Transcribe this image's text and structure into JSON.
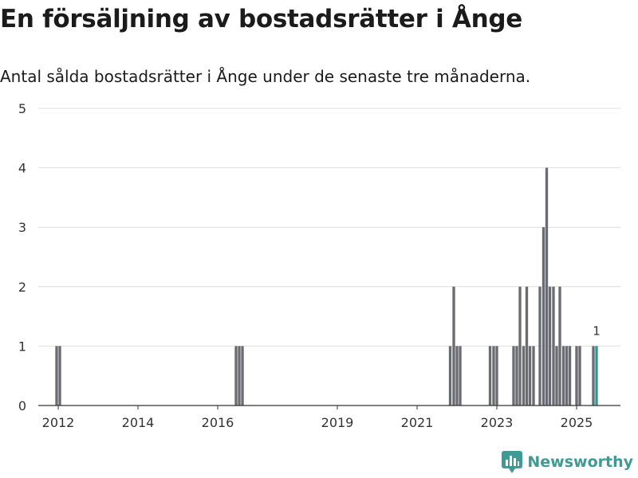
{
  "title": "En försäljning av bostadsrätter i Ånge",
  "subtitle": "Antal sålda bostadsrätter i Ånge under de senaste tre månaderna.",
  "brand": {
    "name": "Newsworthy",
    "icon": "newsworthy-logo-icon"
  },
  "colors": {
    "bar": "#6b6b73",
    "highlight": "#2a9d8f",
    "grid": "#dedede",
    "axis": "#333333",
    "brand": "#3f9a94"
  },
  "chart_data": {
    "type": "bar",
    "title": "En försäljning av bostadsrätter i Ånge",
    "xlabel": "",
    "ylabel": "",
    "ylim": [
      0,
      5
    ],
    "yticks": [
      0,
      1,
      2,
      3,
      4,
      5
    ],
    "xlim": [
      2011.5,
      2026.1
    ],
    "xticks": [
      2012,
      2014,
      2016,
      2019,
      2021,
      2023,
      2025
    ],
    "bar_width": 0.083,
    "x": [
      2011.96,
      2012.04,
      2016.46,
      2016.54,
      2016.62,
      2021.83,
      2021.92,
      2022.0,
      2022.08,
      2022.83,
      2022.92,
      2023.0,
      2023.42,
      2023.5,
      2023.58,
      2023.67,
      2023.75,
      2023.83,
      2023.92,
      2024.08,
      2024.17,
      2024.25,
      2024.33,
      2024.42,
      2024.5,
      2024.58,
      2024.67,
      2024.75,
      2024.83,
      2025.0,
      2025.08,
      2025.42,
      2025.5
    ],
    "values": [
      1,
      1,
      1,
      1,
      1,
      1,
      2,
      1,
      1,
      1,
      1,
      1,
      1,
      1,
      2,
      1,
      2,
      1,
      1,
      2,
      3,
      4,
      2,
      2,
      1,
      2,
      1,
      1,
      1,
      1,
      1,
      1,
      1
    ],
    "highlight_index": 32,
    "annotations": [
      {
        "x": 2025.5,
        "y": 1,
        "text": "1"
      }
    ]
  }
}
